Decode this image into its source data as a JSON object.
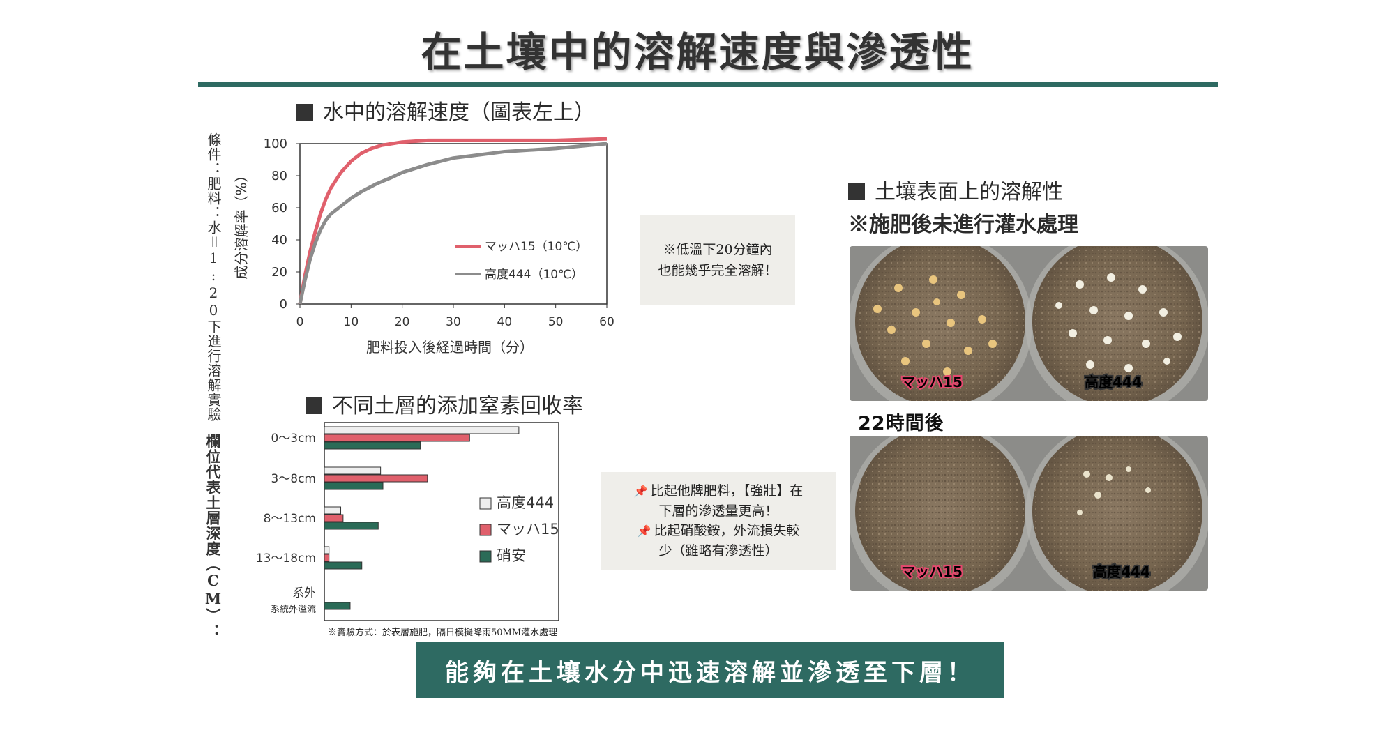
{
  "page": {
    "title": "在土壤中的溶解速度與滲透性",
    "banner": "能夠在土壤水分中迅速溶解並滲透至下層！"
  },
  "water_section": {
    "heading": "水中的溶解速度（圖表左上）",
    "condition": "條件：肥料：水＝1:20下進行溶解實驗"
  },
  "soil_section": {
    "heading": "不同土層的添加窒素回收率",
    "side_label": "欄位代表土層深度（CM）：",
    "footnote": "※實驗方式：於表層施肥，隔日模擬降雨50MM灌水處理"
  },
  "surface_section": {
    "heading": "土壤表面上的溶解性",
    "subheading": "※施肥後未進行灌水處理",
    "time_label": "22時間後",
    "dish_left": "マッハ15",
    "dish_right": "高度444"
  },
  "notes": {
    "water_note": [
      "※低溫下20分鐘內",
      "也能幾乎完全溶解！"
    ],
    "soil_note": [
      "比起他牌肥料，【強壯】在",
      "下層的滲透量更高！",
      "比起硝酸銨，外流損失較",
      "少（雖略有滲透性）"
    ]
  },
  "colors": {
    "accent": "#2e6a62",
    "mach15": "#e0606c",
    "kodo444": "#8c8c8c",
    "shoan": "#2a6b57",
    "kodo444_fill": "#eeeeee"
  },
  "chart_data": [
    {
      "type": "line",
      "xlabel": "肥料投入後経過時間（分）",
      "ylabel": "成分溶解率（%）",
      "xlim": [
        0,
        60
      ],
      "ylim": [
        0,
        100
      ],
      "xticks": [
        0,
        10,
        20,
        30,
        40,
        50,
        60
      ],
      "yticks": [
        0,
        20,
        40,
        60,
        80,
        100
      ],
      "legend_position": "center-right",
      "series": [
        {
          "name": "マッハ15（10℃）",
          "color": "#e0606c",
          "x": [
            0,
            1,
            2,
            3,
            4,
            5,
            6,
            8,
            10,
            12,
            14,
            16,
            18,
            20,
            25,
            30,
            40,
            50,
            60
          ],
          "y": [
            0,
            18,
            33,
            45,
            56,
            65,
            72,
            82,
            89,
            94,
            97,
            99,
            100,
            101,
            102,
            102,
            102,
            102,
            103
          ]
        },
        {
          "name": "高度444（10℃）",
          "color": "#8c8c8c",
          "x": [
            0,
            1,
            2,
            3,
            4,
            5,
            6,
            8,
            10,
            12,
            15,
            18,
            20,
            25,
            30,
            35,
            40,
            50,
            60
          ],
          "y": [
            0,
            15,
            28,
            38,
            46,
            52,
            56,
            61,
            66,
            70,
            75,
            79,
            82,
            87,
            91,
            93,
            95,
            97,
            100
          ]
        }
      ]
    },
    {
      "type": "bar",
      "orientation": "horizontal",
      "categories": [
        "0〜3cm",
        "3〜8cm",
        "8〜13cm",
        "13〜18cm",
        "系外"
      ],
      "category_sublabels": [
        "",
        "",
        "",
        "",
        "系統外溢流"
      ],
      "xlim": [
        0,
        100
      ],
      "legend_position": "center-right",
      "series": [
        {
          "name": "高度444",
          "color": "#eeeeee",
          "values": [
            83,
            24,
            7,
            2,
            0
          ]
        },
        {
          "name": "マッハ15",
          "color": "#e0606c",
          "values": [
            62,
            44,
            8,
            2,
            0
          ]
        },
        {
          "name": "硝安",
          "color": "#2a6b57",
          "values": [
            41,
            25,
            23,
            16,
            11
          ]
        }
      ]
    }
  ]
}
